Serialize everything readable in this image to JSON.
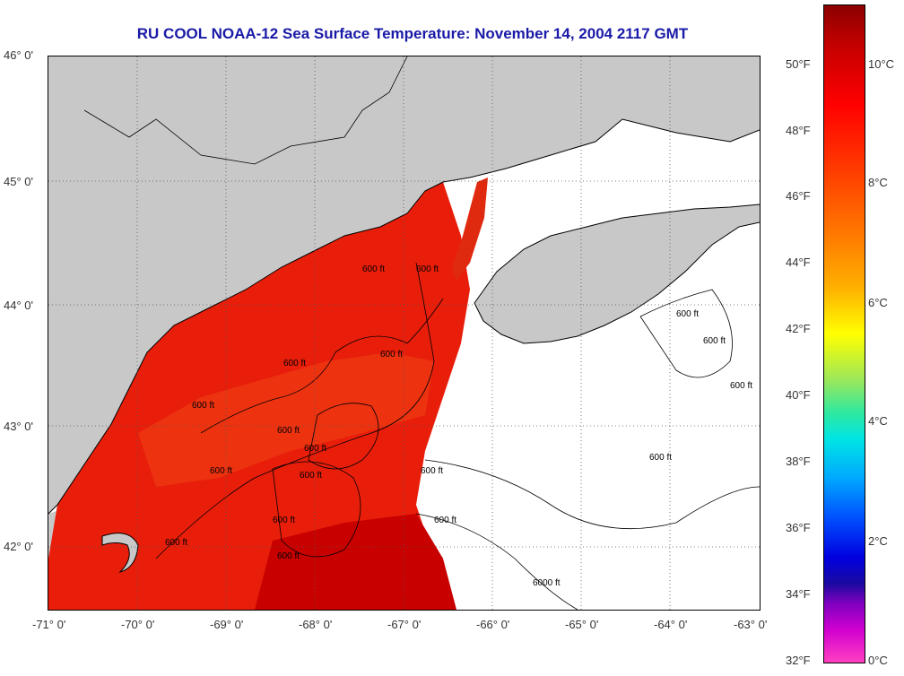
{
  "title": "RU COOL  NOAA-12  Sea Surface Temperature:  November 14, 2004 2117 GMT",
  "lat_labels": [
    "46° 0'",
    "45° 0'",
    "44° 0'",
    "43° 0'",
    "42° 0'"
  ],
  "lon_labels": [
    "-71° 0'",
    "-70° 0'",
    "-69° 0'",
    "-68° 0'",
    "-67° 0'",
    "-66° 0'",
    "-65° 0'",
    "-64° 0'",
    "-63° 0'"
  ],
  "colorbar": {
    "fahrenheit": [
      "50°F",
      "48°F",
      "46°F",
      "44°F",
      "42°F",
      "40°F",
      "38°F",
      "36°F",
      "34°F",
      "32°F"
    ],
    "celsius": [
      "10°C",
      "8°C",
      "6°C",
      "4°C",
      "2°C",
      "0°C"
    ]
  },
  "contour_labels": [
    "600 ft",
    "600 ft",
    "600 ft",
    "600 ft",
    "600 ft",
    "600 ft",
    "600 ft",
    "600 ft",
    "600 ft",
    "600 ft",
    "600 ft",
    "600 ft",
    "600 ft",
    "600 ft",
    "600 ft",
    "6000 ft",
    "600 ft",
    "600 ft",
    "600 ft"
  ],
  "colors": {
    "land": "#c8c8c8",
    "no_data": "#ffffff",
    "sst_warm": "#e81e0a",
    "sst_hot": "#c80000",
    "title": "#1a1aa8"
  }
}
